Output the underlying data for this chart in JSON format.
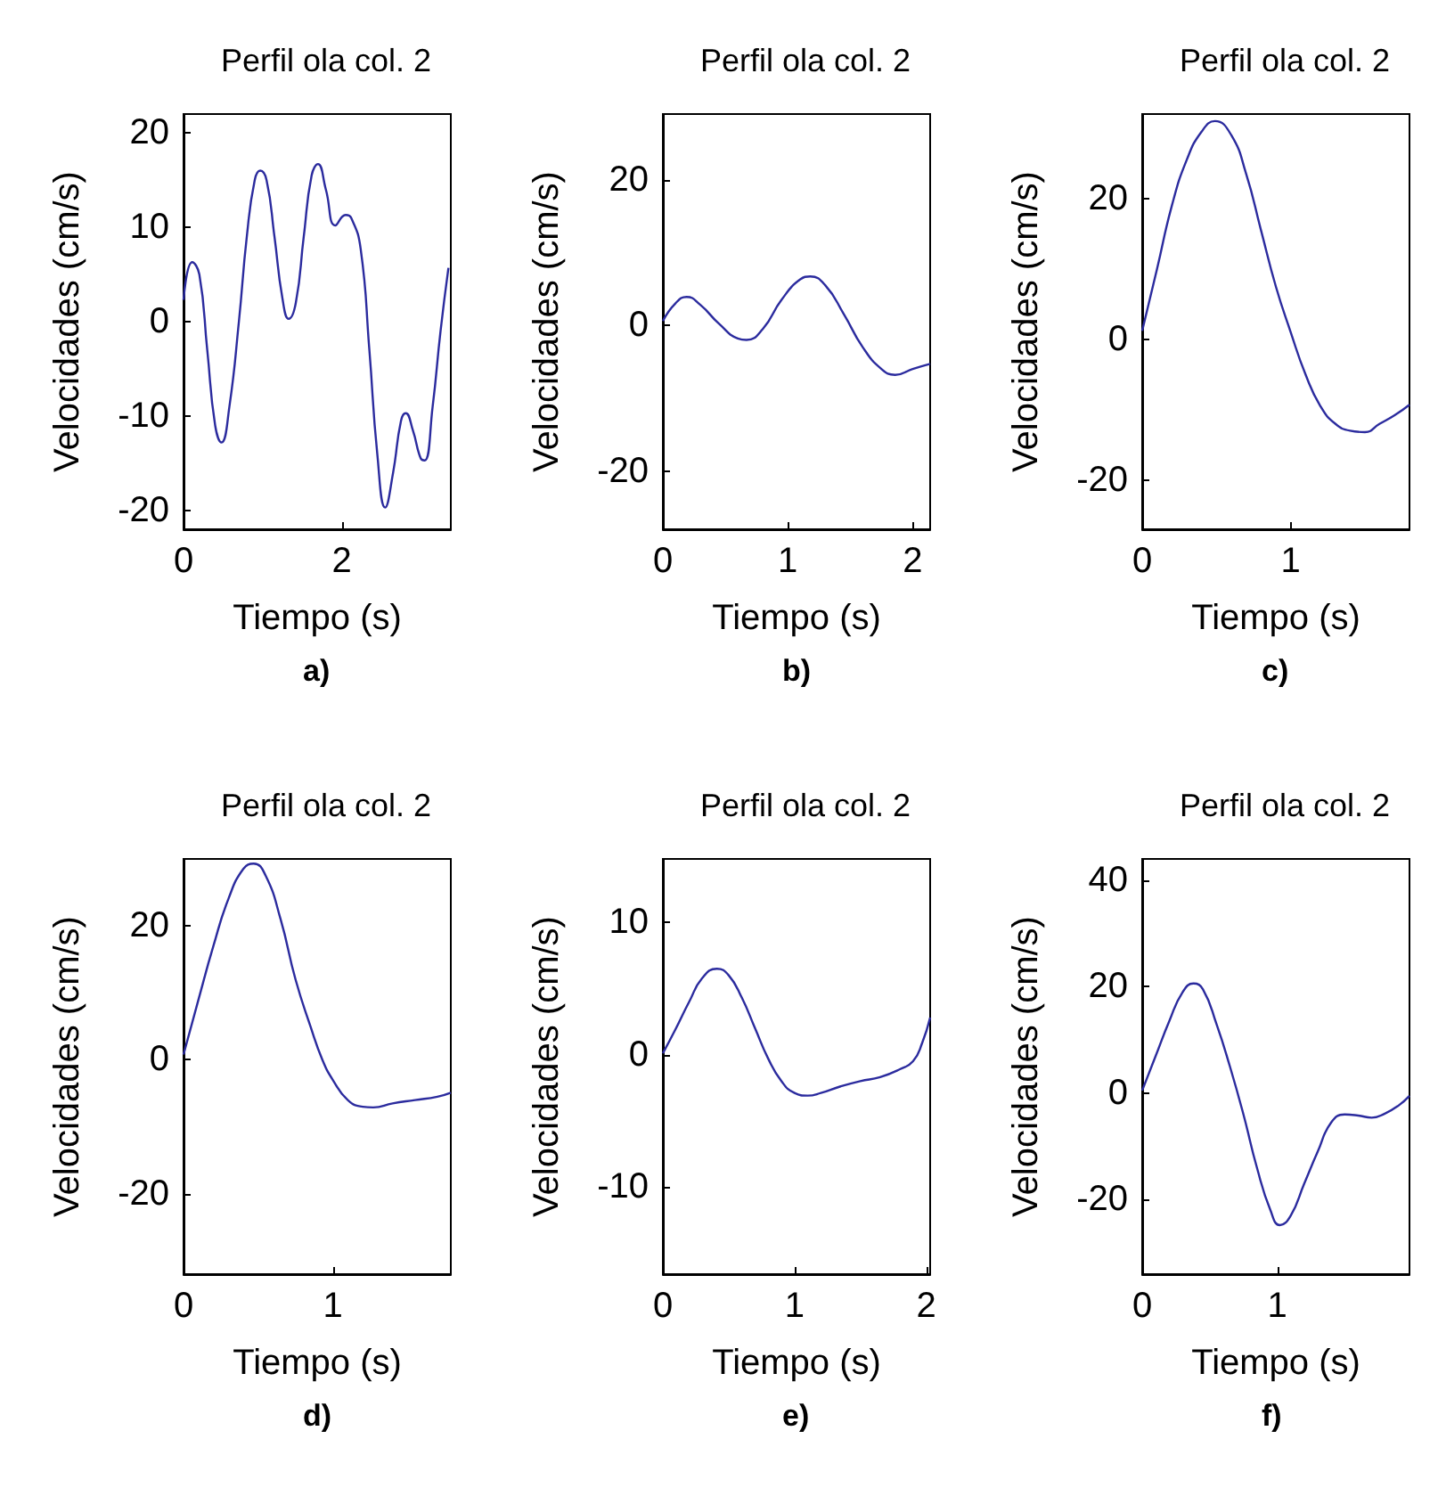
{
  "chart_data": [
    {
      "type": "line",
      "title": "Perfil ola col. 2",
      "xlabel": "Tiempo (s)",
      "ylabel": "Velocidades (cm/s)",
      "annotations": [
        "a)"
      ],
      "color": "#2b2b9e",
      "xlim": [
        0,
        3.38
      ],
      "ylim": [
        -22,
        22
      ],
      "xticks": [
        0,
        2
      ],
      "yticks": [
        -20,
        -10,
        0,
        10,
        20
      ],
      "x": [
        0,
        0.11,
        0.2,
        0.3,
        0.4,
        0.48,
        0.58,
        0.7,
        0.8,
        0.9,
        0.97,
        1.05,
        1.15,
        1.25,
        1.33,
        1.42,
        1.52,
        1.62,
        1.7,
        1.8,
        1.92,
        2.05,
        2.12,
        2.24,
        2.35,
        2.45,
        2.55,
        2.65,
        2.75,
        2.81,
        2.9,
        3.0,
        3.05,
        3.15,
        3.25,
        3.35
      ],
      "values": [
        2.3,
        6.3,
        5,
        -3,
        -11,
        -12.8,
        -9,
        0,
        9,
        15,
        16,
        15,
        9,
        2.5,
        0.3,
        2,
        9,
        15.5,
        16.7,
        14,
        10.2,
        11.3,
        11,
        7.7,
        -3,
        -14,
        -19.7,
        -16,
        -10.5,
        -9.7,
        -11.5,
        -14.5,
        -14.7,
        -9,
        -1,
        5.7
      ]
    },
    {
      "type": "line",
      "title": "Perfil ola col. 2",
      "xlabel": "Tiempo (s)",
      "ylabel": "Velocidades (cm/s)",
      "annotations": [
        "b)"
      ],
      "color": "#2b2b9e",
      "xlim": [
        0,
        2.14
      ],
      "ylim": [
        -28,
        29
      ],
      "xticks": [
        0,
        1,
        2
      ],
      "yticks": [
        -20,
        0,
        20
      ],
      "x": [
        0,
        0.1,
        0.19,
        0.3,
        0.45,
        0.6,
        0.67,
        0.8,
        0.95,
        1.1,
        1.18,
        1.3,
        1.45,
        1.6,
        1.75,
        1.86,
        2.0,
        2.14
      ],
      "values": [
        0.6,
        3,
        3.9,
        2.8,
        0.2,
        -1.8,
        -2,
        -0.5,
        3.5,
        6.3,
        6.7,
        5.5,
        1.5,
        -3,
        -6,
        -6.8,
        -6,
        -5.3
      ]
    },
    {
      "type": "line",
      "title": "Perfil ola col. 2",
      "xlabel": "Tiempo (s)",
      "ylabel": "Velocidades (cm/s)",
      "annotations": [
        "c)"
      ],
      "color": "#2b2b9e",
      "xlim": [
        0,
        1.8
      ],
      "ylim": [
        -27,
        32
      ],
      "xticks": [
        0,
        1
      ],
      "yticks": [
        -20,
        0,
        20
      ],
      "x": [
        0,
        0.1,
        0.2,
        0.3,
        0.4,
        0.49,
        0.6,
        0.7,
        0.8,
        0.9,
        1.0,
        1.1,
        1.2,
        1.3,
        1.4,
        1.5,
        1.6,
        1.7,
        1.8
      ],
      "values": [
        1.2,
        10,
        19,
        25.5,
        29.5,
        31,
        29,
        23.5,
        15.5,
        7.5,
        1,
        -5,
        -9.5,
        -12,
        -13,
        -13.2,
        -12,
        -10.8,
        -9.3
      ]
    },
    {
      "type": "line",
      "title": "Perfil ola col. 2",
      "xlabel": "Tiempo (s)",
      "ylabel": "Velocidades (cm/s)",
      "annotations": [
        "d)"
      ],
      "color": "#2b2b9e",
      "xlim": [
        0,
        1.79
      ],
      "ylim": [
        -32,
        30
      ],
      "xticks": [
        0,
        1
      ],
      "yticks": [
        -20,
        0,
        20
      ],
      "x": [
        0,
        0.1,
        0.2,
        0.3,
        0.4,
        0.47,
        0.55,
        0.65,
        0.75,
        0.85,
        0.93,
        1.0,
        1.1,
        1.2,
        1.27,
        1.4,
        1.55,
        1.7,
        1.79
      ],
      "values": [
        0.8,
        9,
        17,
        24,
        28.5,
        29.3,
        27.5,
        21,
        12,
        5,
        0,
        -3,
        -6,
        -7,
        -7.1,
        -6.5,
        -6,
        -5.5,
        -4.9
      ]
    },
    {
      "type": "line",
      "title": "Perfil ola col. 2",
      "xlabel": "Tiempo (s)",
      "ylabel": "Velocidades (cm/s)",
      "annotations": [
        "e)"
      ],
      "color": "#2b2b9e",
      "xlim": [
        0,
        2.03
      ],
      "ylim": [
        -16.6,
        14.8
      ],
      "xticks": [
        0,
        1,
        2
      ],
      "yticks": [
        -10,
        0,
        10
      ],
      "x": [
        0,
        0.1,
        0.2,
        0.3,
        0.41,
        0.5,
        0.6,
        0.7,
        0.8,
        0.9,
        1.0,
        1.1,
        1.2,
        1.35,
        1.5,
        1.65,
        1.8,
        1.9,
        1.97,
        2.03
      ],
      "values": [
        0.1,
        2,
        4,
        5.8,
        6.5,
        6,
        4.3,
        2,
        -0.3,
        -2,
        -2.9,
        -3.1,
        -2.9,
        -2.4,
        -2,
        -1.7,
        -1.1,
        -0.5,
        0.9,
        2.8
      ]
    },
    {
      "type": "line",
      "title": "Perfil ola col. 2",
      "xlabel": "Tiempo (s)",
      "ylabel": "Velocidades (cm/s)",
      "annotations": [
        "f)"
      ],
      "color": "#2b2b9e",
      "xlim": [
        0,
        1.98
      ],
      "ylim": [
        -34,
        44
      ],
      "xticks": [
        0,
        1
      ],
      "yticks": [
        -20,
        0,
        20,
        40
      ],
      "x": [
        0,
        0.1,
        0.2,
        0.3,
        0.38,
        0.45,
        0.55,
        0.65,
        0.75,
        0.85,
        0.95,
        1.02,
        1.1,
        1.2,
        1.3,
        1.4,
        1.5,
        1.6,
        1.7,
        1.8,
        1.9,
        1.98
      ],
      "values": [
        0.5,
        7,
        13.5,
        19,
        20.6,
        19.5,
        13,
        5,
        -4,
        -14,
        -22,
        -24.8,
        -23,
        -17,
        -11,
        -5.5,
        -4,
        -4.2,
        -4.6,
        -3.8,
        -2.3,
        -0.5
      ]
    }
  ]
}
